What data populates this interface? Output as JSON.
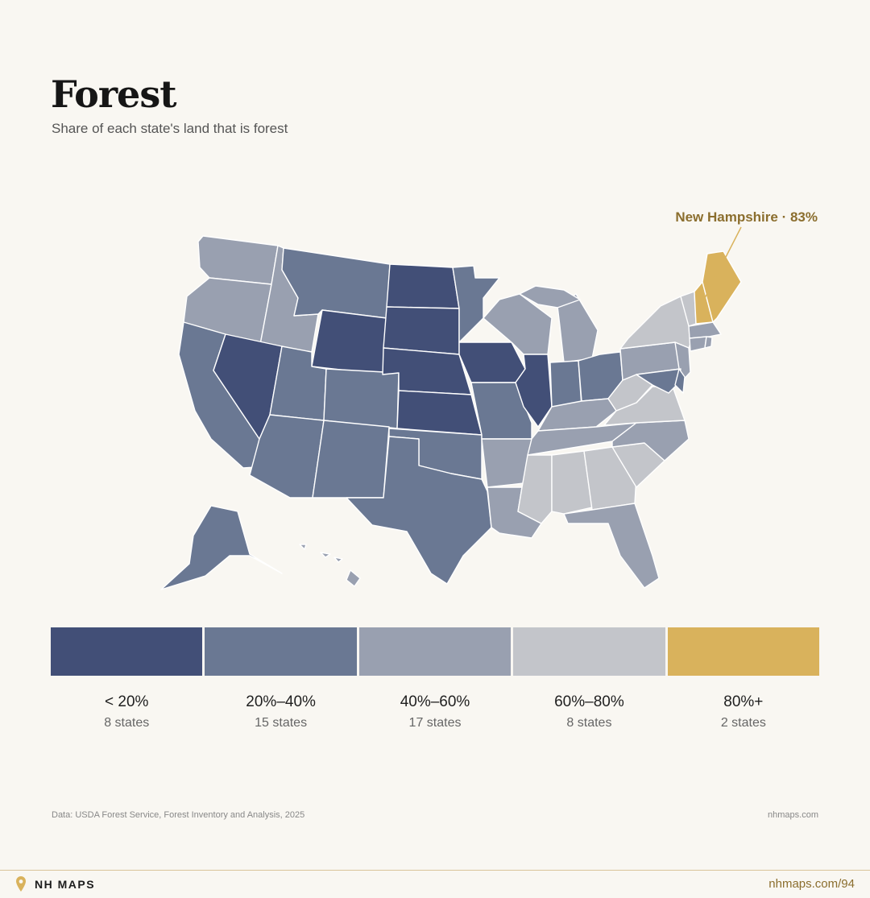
{
  "header": {
    "title": "Forest",
    "subtitle": "Share of each state's land that is forest"
  },
  "callout": {
    "label": "New Hampshire · 83%",
    "color": "#d9b25c"
  },
  "colors": {
    "bin1": "#424f77",
    "bin2": "#6a7893",
    "bin3": "#99a0b0",
    "bin4": "#c3c5ca",
    "bin5": "#d9b25c",
    "background": "#f9f7f2",
    "accent_text": "#8b6e2e"
  },
  "legend": [
    {
      "range": "< 20%",
      "count": "8 states",
      "color": "#424f77"
    },
    {
      "range": "20%–40%",
      "count": "15 states",
      "color": "#6a7893"
    },
    {
      "range": "40%–60%",
      "count": "17 states",
      "color": "#99a0b0"
    },
    {
      "range": "60%–80%",
      "count": "8 states",
      "color": "#c3c5ca"
    },
    {
      "range": "80%+",
      "count": "2 states",
      "color": "#d9b25c"
    }
  ],
  "state_bins": {
    "WA": 3,
    "OR": 3,
    "ID": 3,
    "MT": 2,
    "WY": 1,
    "ND": 1,
    "SD": 1,
    "NE": 1,
    "KS": 1,
    "MN": 2,
    "IA": 1,
    "IL": 1,
    "WI": 3,
    "MI": 3,
    "IN": 2,
    "OH": 2,
    "KY": 3,
    "TN": 3,
    "CA": 2,
    "NV": 1,
    "UT": 2,
    "CO": 2,
    "AZ": 2,
    "NM": 2,
    "TX": 2,
    "OK": 2,
    "MO": 2,
    "AR": 3,
    "LA": 3,
    "MS": 4,
    "AL": 4,
    "GA": 4,
    "FL": 3,
    "SC": 4,
    "NC": 3,
    "VA": 4,
    "WV": 4,
    "PA": 3,
    "NY": 4,
    "VT": 4,
    "NH": 5,
    "ME": 5,
    "MA": 3,
    "CT": 3,
    "RI": 3,
    "NJ": 3,
    "DE": 2,
    "MD": 2,
    "AK": 2,
    "HI": 3
  },
  "source": "Data: USDA Forest Service, Forest Inventory and Analysis, 2025",
  "site": "nhmaps.com",
  "footer": {
    "brand": "NH MAPS",
    "link": "nhmaps.com/94"
  }
}
